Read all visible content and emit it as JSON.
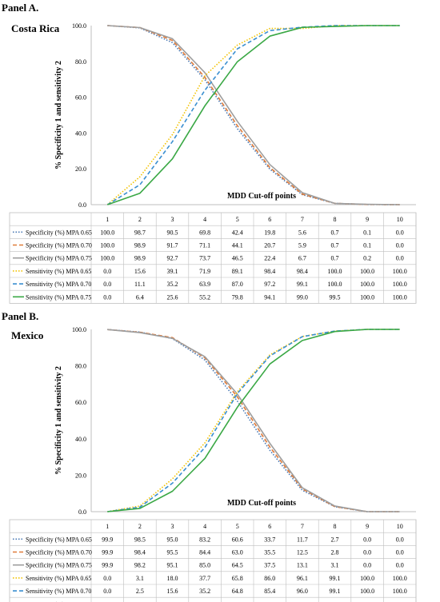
{
  "panels": [
    {
      "label": "Panel A.",
      "country": "Costa Rica",
      "chart_data": {
        "type": "line",
        "x": [
          1,
          2,
          3,
          4,
          5,
          6,
          7,
          8,
          9,
          10
        ],
        "ylim": [
          0,
          100
        ],
        "yticks": [
          "0.0",
          "20.0",
          "40.0",
          "60.0",
          "80.0",
          "100.0"
        ],
        "ylabel": "% Specificity 1 and sensitivity 2",
        "xlabel": "MDD Cut-off points",
        "series": [
          {
            "name": "Specificity (%) MPA 0.65",
            "labels": [
              "100.0",
              "98.7",
              "90.5",
              "69.8",
              "42.4",
              "19.8",
              "5.6",
              "0.7",
              "0.1",
              "0.0"
            ],
            "values": [
              100.0,
              98.7,
              90.5,
              69.8,
              42.4,
              19.8,
              5.6,
              0.7,
              0.1,
              0.0
            ],
            "color": "#4a7ab5",
            "dash": "dotted"
          },
          {
            "name": "Specificity (%) MPA 0.70",
            "labels": [
              "100.0",
              "98.9",
              "91.7",
              "71.1",
              "44.1",
              "20.7",
              "5.9",
              "0.7",
              "0.1",
              "0.0"
            ],
            "values": [
              100.0,
              98.9,
              91.7,
              71.1,
              44.1,
              20.7,
              5.9,
              0.7,
              0.1,
              0.0
            ],
            "color": "#e07b39",
            "dash": "dashed"
          },
          {
            "name": "Specificity (%) MPA 0.75",
            "labels": [
              "100.0",
              "98.9",
              "92.7",
              "73.7",
              "46.5",
              "22.4",
              "6.7",
              "0.7",
              "0.2",
              "0.0"
            ],
            "values": [
              100.0,
              98.9,
              92.7,
              73.7,
              46.5,
              22.4,
              6.7,
              0.7,
              0.2,
              0.0
            ],
            "color": "#9e9e9e",
            "dash": "solid"
          },
          {
            "name": "Sensitivity (%) MPA 0.65",
            "labels": [
              "0.0",
              "15.6",
              "39.1",
              "71.9",
              "89.1",
              "98.4",
              "98.4",
              "100.0",
              "100.0",
              "100.0"
            ],
            "values": [
              0.0,
              15.6,
              39.1,
              71.9,
              89.1,
              98.4,
              98.4,
              100.0,
              100.0,
              100.0
            ],
            "color": "#f2c200",
            "dash": "dotted"
          },
          {
            "name": "Sensitivity (%) MPA 0.70",
            "labels": [
              "0.0",
              "11.1",
              "35.2",
              "63.9",
              "87.0",
              "97.2",
              "99.1",
              "100.0",
              "100.0",
              "100.0"
            ],
            "values": [
              0.0,
              11.1,
              35.2,
              63.9,
              87.0,
              97.2,
              99.1,
              100.0,
              100.0,
              100.0
            ],
            "color": "#3a8fd0",
            "dash": "dashed"
          },
          {
            "name": "Sensitivity (%) MPA 0.75",
            "labels": [
              "0.0",
              "6.4",
              "25.6",
              "55.2",
              "79.8",
              "94.1",
              "99.0",
              "99.5",
              "100.0",
              "100.0"
            ],
            "values": [
              0.0,
              6.4,
              25.6,
              55.2,
              79.8,
              94.1,
              99.0,
              99.5,
              100.0,
              100.0
            ],
            "color": "#3aa845",
            "dash": "solid"
          }
        ]
      }
    },
    {
      "label": "Panel B.",
      "country": "Mexico",
      "chart_data": {
        "type": "line",
        "x": [
          1,
          2,
          3,
          4,
          5,
          6,
          7,
          8,
          9,
          10
        ],
        "ylim": [
          0,
          100
        ],
        "yticks": [
          "0.0",
          "20.0",
          "40.0",
          "60.0",
          "80.0",
          "100.0"
        ],
        "ylabel": "% Specificity 1 and sensitivity 2",
        "xlabel": "MDD Cut-off points",
        "series": [
          {
            "name": "Specificity (%) MPA 0.65",
            "labels": [
              "99.9",
              "98.5",
              "95.0",
              "83.2",
              "60.6",
              "33.7",
              "11.7",
              "2.7",
              "0.0",
              "0.0"
            ],
            "values": [
              99.9,
              98.5,
              95.0,
              83.2,
              60.6,
              33.7,
              11.7,
              2.7,
              0.0,
              0.0
            ],
            "color": "#4a7ab5",
            "dash": "dotted"
          },
          {
            "name": "Specificity (%) MPA 0.70",
            "labels": [
              "99.9",
              "98.4",
              "95.5",
              "84.4",
              "63.0",
              "35.5",
              "12.5",
              "2.8",
              "0.0",
              "0.0"
            ],
            "values": [
              99.9,
              98.4,
              95.5,
              84.4,
              63.0,
              35.5,
              12.5,
              2.8,
              0.0,
              0.0
            ],
            "color": "#e07b39",
            "dash": "dashed"
          },
          {
            "name": "Specificity (%) MPA 0.75",
            "labels": [
              "99.9",
              "98.2",
              "95.1",
              "85.0",
              "64.5",
              "37.5",
              "13.1",
              "3.1",
              "0.0",
              "0.0"
            ],
            "values": [
              99.9,
              98.2,
              95.1,
              85.0,
              64.5,
              37.5,
              13.1,
              3.1,
              0.0,
              0.0
            ],
            "color": "#9e9e9e",
            "dash": "solid"
          },
          {
            "name": "Sensitivity (%) MPA 0.65",
            "labels": [
              "0.0",
              "3.1",
              "18.0",
              "37.7",
              "65.8",
              "86.0",
              "96.1",
              "99.1",
              "100.0",
              "100.0"
            ],
            "values": [
              0.0,
              3.1,
              18.0,
              37.7,
              65.8,
              86.0,
              96.1,
              99.1,
              100.0,
              100.0
            ],
            "color": "#f2c200",
            "dash": "dotted"
          },
          {
            "name": "Sensitivity (%) MPA 0.70",
            "labels": [
              "0.0",
              "2.5",
              "15.6",
              "35.2",
              "64.8",
              "85.4",
              "96.0",
              "99.1",
              "100.0",
              "100.0"
            ],
            "values": [
              0.0,
              2.5,
              15.6,
              35.2,
              64.8,
              85.4,
              96.0,
              99.1,
              100.0,
              100.0
            ],
            "color": "#3a8fd0",
            "dash": "dashed"
          },
          {
            "name": "Sensitivity (%) MPA 0.75",
            "labels": [
              "0.0",
              "1.8",
              "11.2",
              "29.2",
              "57.3",
              "81.0",
              "93.9",
              "98.8",
              "100.0",
              "100.0"
            ],
            "values": [
              0.0,
              1.8,
              11.2,
              29.2,
              57.3,
              81.0,
              93.9,
              98.8,
              100.0,
              100.0
            ],
            "color": "#3aa845",
            "dash": "solid"
          }
        ]
      }
    }
  ]
}
